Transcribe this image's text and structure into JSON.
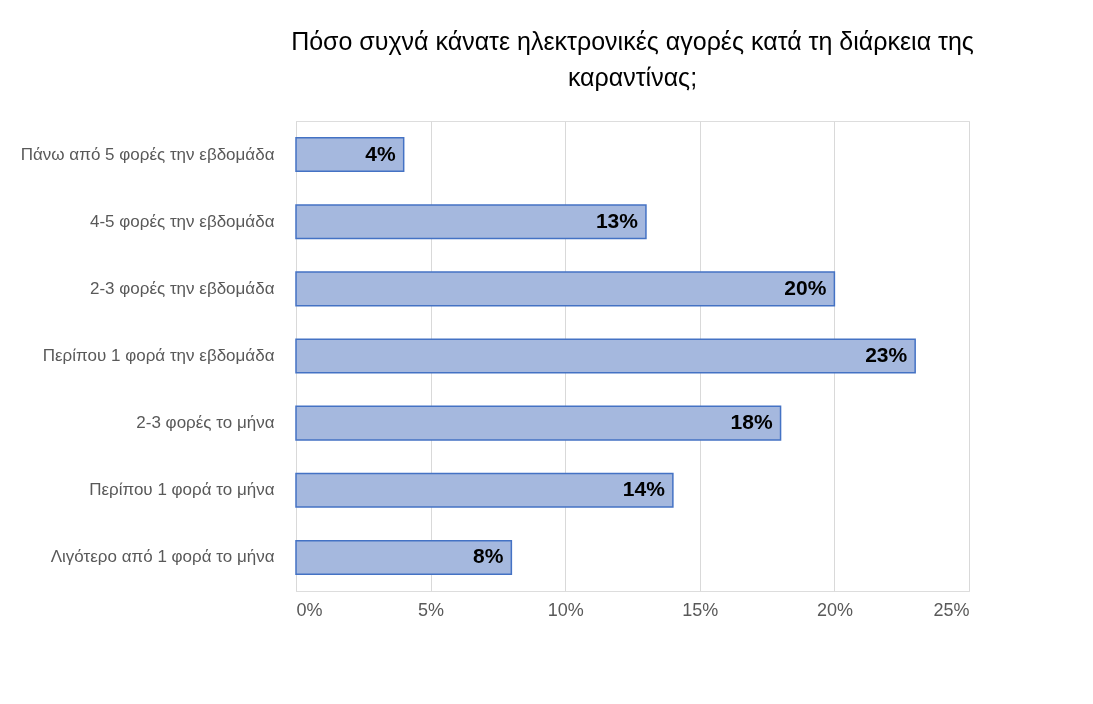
{
  "chart_data": {
    "type": "bar",
    "orientation": "horizontal",
    "title": "Πόσο συχνά κάνατε ηλεκτρονικές αγορές κατά τη διάρκεια της καραντίνας;",
    "categories": [
      "Πάνω από 5 φορές την εβδομάδα",
      "4-5 φορές την εβδομάδα",
      "2-3 φορές την εβδομάδα",
      "Περίπου 1 φορά την εβδομάδα",
      "2-3 φορές το μήνα",
      "Περίπου 1 φορά το μήνα",
      "Λιγότερο από 1 φορά το μήνα"
    ],
    "values": [
      4,
      13,
      20,
      23,
      18,
      14,
      8
    ],
    "color": "#a5b8de",
    "xlim": [
      0,
      25
    ],
    "xticks": [
      {
        "value": 0,
        "label": "0%"
      },
      {
        "value": 5,
        "label": "5%"
      },
      {
        "value": 10,
        "label": "10%"
      },
      {
        "value": 15,
        "label": "15%"
      },
      {
        "value": 20,
        "label": "20%"
      },
      {
        "value": 25,
        "label": "25%"
      }
    ],
    "value_labels": [
      "4%",
      "13%",
      "20%",
      "23%",
      "18%",
      "14%",
      "8%"
    ],
    "grid": "x"
  }
}
